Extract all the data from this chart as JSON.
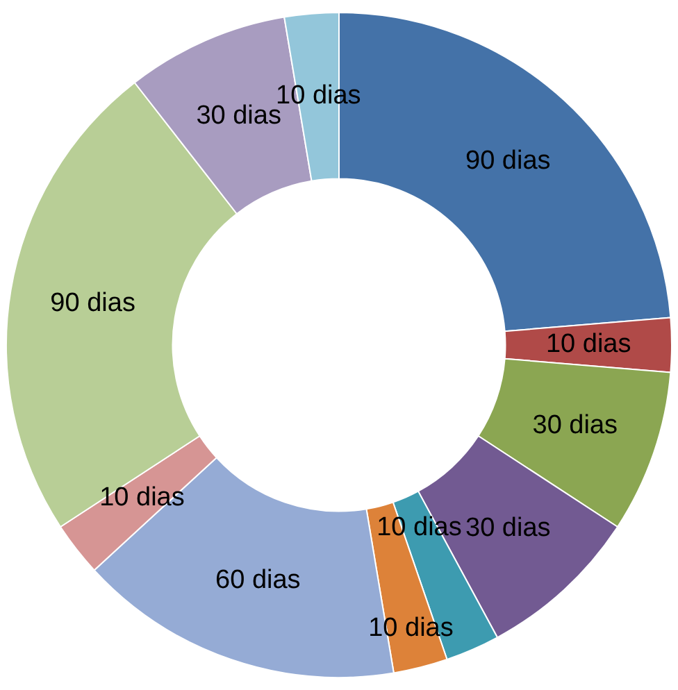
{
  "chart_data": {
    "type": "donut",
    "categories": [
      null,
      null,
      null,
      null,
      null,
      null,
      null,
      null,
      null,
      null,
      null
    ],
    "values": [
      90,
      10,
      30,
      30,
      10,
      10,
      60,
      10,
      90,
      30,
      10
    ],
    "value_labels": [
      "90 dias",
      "10 dias",
      "30 dias",
      "30 dias",
      "10 dias",
      "10 dias",
      "60 dias",
      "10 dias",
      "90 dias",
      "30 dias",
      "10 dias"
    ],
    "colors": [
      "#4472a8",
      "#b04a48",
      "#8ba652",
      "#725a92",
      "#3d9bb0",
      "#dd8239",
      "#95abd5",
      "#d69594",
      "#b8ce96",
      "#a89cc0",
      "#93c6da"
    ]
  }
}
